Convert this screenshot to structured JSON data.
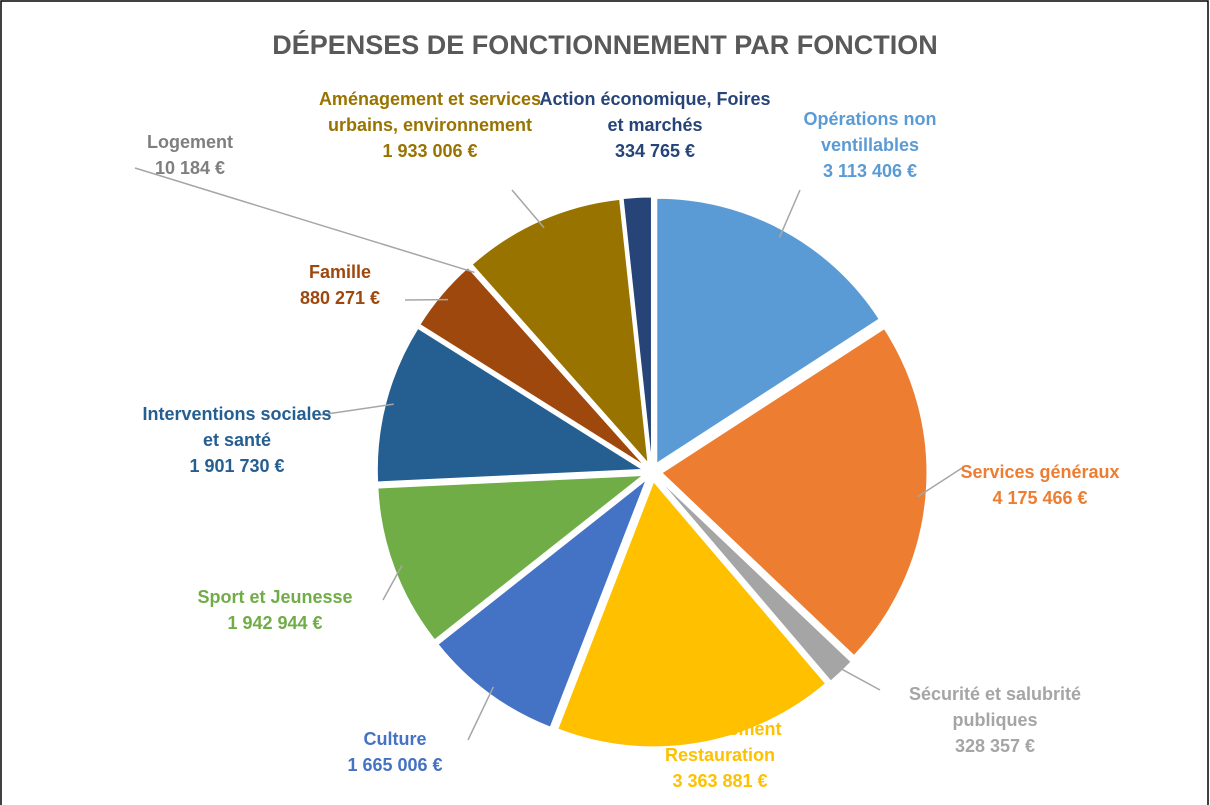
{
  "chart_data": {
    "type": "pie",
    "title": "DÉPENSES DE FONCTIONNEMENT PAR FONCTION",
    "categories": [
      "Opérations non ventillables",
      "Services généraux",
      "Sécurité et salubrité publiques",
      "Enseignement Restauration",
      "Culture",
      "Sport et Jeunesse",
      "Interventions sociales et santé",
      "Famille",
      "Logement",
      "Aménagement et services urbains, environnement",
      "Action économique, Foires et marchés"
    ],
    "values": [
      3113406,
      4175466,
      328357,
      3363881,
      1665006,
      1942944,
      1901730,
      880271,
      10184,
      1933006,
      334765
    ],
    "value_labels": [
      "3 113 406 €",
      "4 175 466 €",
      "328 357 €",
      "3 363 881 €",
      "1 665 006 €",
      "1 942 944 €",
      "1 901 730 €",
      "880 271 €",
      "10 184 €",
      "1 933 006 €",
      "334 765 €"
    ],
    "colors": [
      "#5b9bd5",
      "#ed7d31",
      "#a5a5a5",
      "#ffc000",
      "#4472c4",
      "#70ad47",
      "#255e91",
      "#9e480e",
      "#636363",
      "#997300",
      "#264478"
    ]
  }
}
